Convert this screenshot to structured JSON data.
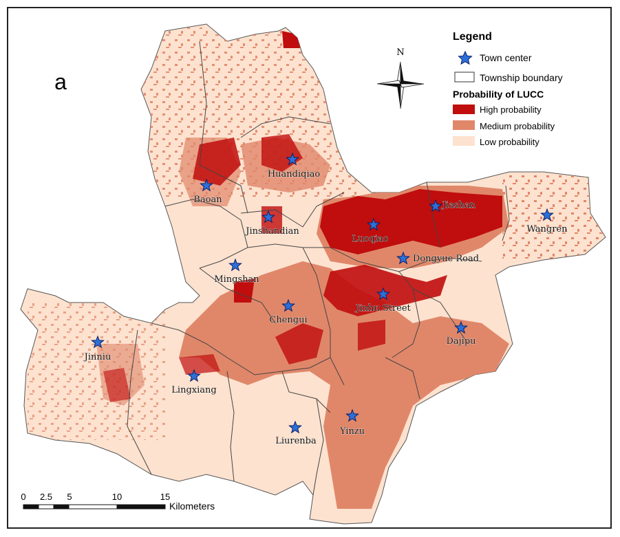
{
  "panel_label": "a",
  "north_label": "N",
  "legend": {
    "title": "Legend",
    "town_center": "Town center",
    "township_boundary": "Township boundary",
    "probability_title": "Probability of LUCC",
    "classes": [
      {
        "label": "High probability",
        "color": "#c00d0d"
      },
      {
        "label": "Medium probability",
        "color": "#e0876a"
      },
      {
        "label": "Low probability",
        "color": "#fde2cf"
      }
    ]
  },
  "scalebar": {
    "ticks": [
      "0",
      "2.5",
      "5",
      "10",
      "15"
    ],
    "unit": "Kilometers"
  },
  "towns": [
    {
      "name": "Huandiqiao"
    },
    {
      "name": "Baoan"
    },
    {
      "name": "Jinshandian"
    },
    {
      "name": "Luoqiao"
    },
    {
      "name": "Jiashan"
    },
    {
      "name": "Wangren"
    },
    {
      "name": "Dongyue Road"
    },
    {
      "name": "Mingshan"
    },
    {
      "name": "Chengui"
    },
    {
      "name": "Jinhu Street"
    },
    {
      "name": "Dajipu"
    },
    {
      "name": "Jinniu"
    },
    {
      "name": "Lingxiang"
    },
    {
      "name": "Liurenba"
    },
    {
      "name": "Yinzu"
    }
  ]
}
